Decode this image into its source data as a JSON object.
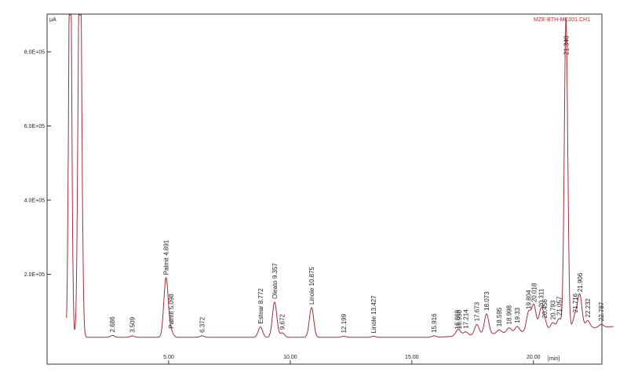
{
  "chart_data": {
    "type": "line",
    "title": "",
    "trace_id": "MZE-BTH-MC001.CH1",
    "ylabel": "μA",
    "xlabel": "[min]",
    "xlim": [
      0,
      23.5
    ],
    "ylim": [
      0,
      9.5
    ],
    "x_ticks": [
      {
        "value": 5,
        "label": "5.00"
      },
      {
        "value": 10,
        "label": "10.00"
      },
      {
        "value": 15,
        "label": "15.00"
      },
      {
        "value": 20,
        "label": "20.00"
      }
    ],
    "y_ticks": [
      {
        "value": 2,
        "label": "2.0E+05"
      },
      {
        "value": 4,
        "label": "4.0E+05"
      },
      {
        "value": 6,
        "label": "6.0E+05"
      },
      {
        "value": 8,
        "label": "8.0E+05"
      }
    ],
    "baseline": 0.3,
    "colors": {
      "trace": "#a0303a",
      "axis": "#333333"
    },
    "solvent_peaks": [
      {
        "x": 0.95,
        "h": 12,
        "w": 0.06
      },
      {
        "x": 1.35,
        "h": 12,
        "w": 0.07
      }
    ],
    "peaks": [
      {
        "label": "2.686",
        "x": 2.686,
        "h": 0.05
      },
      {
        "label": "3.509",
        "x": 3.509,
        "h": 0.04
      },
      {
        "label": "Palmit 4.891",
        "x": 4.891,
        "h": 1.6
      },
      {
        "label": "Palmit 5.098",
        "x": 5.098,
        "h": 0.15
      },
      {
        "label": "6.372",
        "x": 6.372,
        "h": 0.04
      },
      {
        "label": "Estear 8.772",
        "x": 8.772,
        "h": 0.28
      },
      {
        "label": "Oleato 9.357",
        "x": 9.357,
        "h": 0.95
      },
      {
        "label": "9.672",
        "x": 9.672,
        "h": 0.12
      },
      {
        "label": "Linole 10.875",
        "x": 10.875,
        "h": 0.8
      },
      {
        "label": "12.199",
        "x": 12.199,
        "h": 0.03
      },
      {
        "label": "Linole 13.427",
        "x": 13.427,
        "h": 0.03
      },
      {
        "label": "15.916",
        "x": 15.916,
        "h": 0.04
      },
      {
        "label": "16.869",
        "x": 16.869,
        "h": 0.1
      },
      {
        "label": "16.950",
        "x": 16.95,
        "h": 0.1
      },
      {
        "label": "17.214",
        "x": 17.214,
        "h": 0.1
      },
      {
        "label": "17.673",
        "x": 17.673,
        "h": 0.28
      },
      {
        "label": "18.073",
        "x": 18.073,
        "h": 0.55
      },
      {
        "label": "18.595",
        "x": 18.595,
        "h": 0.1
      },
      {
        "label": "18.998",
        "x": 18.998,
        "h": 0.14
      },
      {
        "label": "19.33",
        "x": 19.33,
        "h": 0.16
      },
      {
        "label": "19.804",
        "x": 19.804,
        "h": 0.52
      },
      {
        "label": "20.018",
        "x": 20.018,
        "h": 0.7
      },
      {
        "label": "20.311",
        "x": 20.311,
        "h": 0.55
      },
      {
        "label": "20.456",
        "x": 20.456,
        "h": 0.25
      },
      {
        "label": "20.793",
        "x": 20.793,
        "h": 0.2
      },
      {
        "label": "21.057",
        "x": 21.057,
        "h": 0.3
      },
      {
        "label": "21.340",
        "x": 21.34,
        "h": 8.4
      },
      {
        "label": "21.716",
        "x": 21.716,
        "h": 0.35
      },
      {
        "label": "21.906",
        "x": 21.906,
        "h": 0.9
      },
      {
        "label": "22.232",
        "x": 22.232,
        "h": 0.2
      },
      {
        "label": "22.787",
        "x": 22.787,
        "h": 0.08
      }
    ]
  }
}
